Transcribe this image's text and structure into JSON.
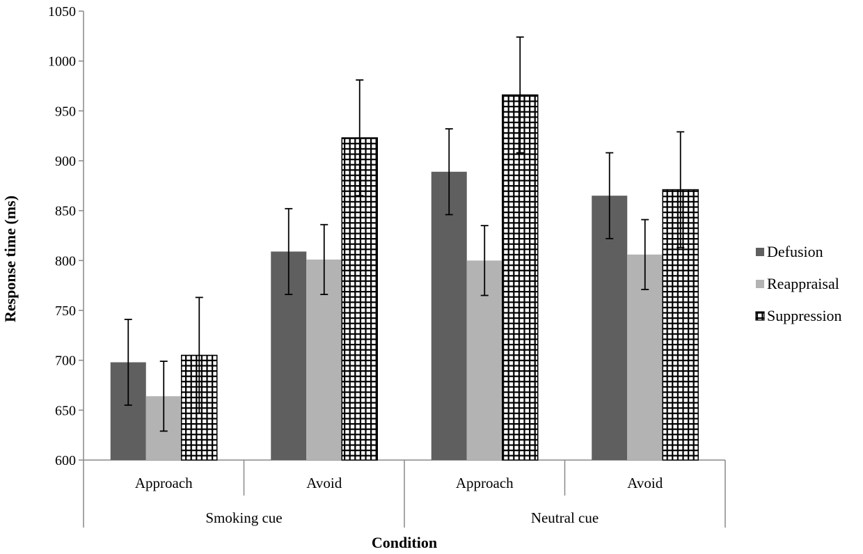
{
  "chart_data": {
    "type": "bar",
    "ylabel": "Response time (ms)",
    "xlabel": "Condition",
    "ylim": [
      600,
      1050
    ],
    "yticks": [
      600,
      650,
      700,
      750,
      800,
      850,
      900,
      950,
      1000,
      1050
    ],
    "groups": [
      {
        "label": "Smoking cue",
        "categories": [
          "Approach",
          "Avoid"
        ]
      },
      {
        "label": "Neutral cue",
        "categories": [
          "Approach",
          "Avoid"
        ]
      }
    ],
    "series": [
      {
        "name": "Defusion",
        "color": "#5f5f5f",
        "pattern": "solid",
        "values": [
          698,
          809,
          889,
          865
        ],
        "errors": [
          43,
          43,
          43,
          43
        ]
      },
      {
        "name": "Reappraisal",
        "color": "#b3b3b3",
        "pattern": "solid",
        "values": [
          664,
          801,
          800,
          806
        ],
        "errors": [
          35,
          35,
          35,
          35
        ]
      },
      {
        "name": "Suppression",
        "color": "#000000",
        "pattern": "grid",
        "values": [
          705,
          923,
          966,
          871
        ],
        "errors": [
          58,
          58,
          58,
          58
        ]
      }
    ],
    "legend": "right",
    "grid": false
  }
}
